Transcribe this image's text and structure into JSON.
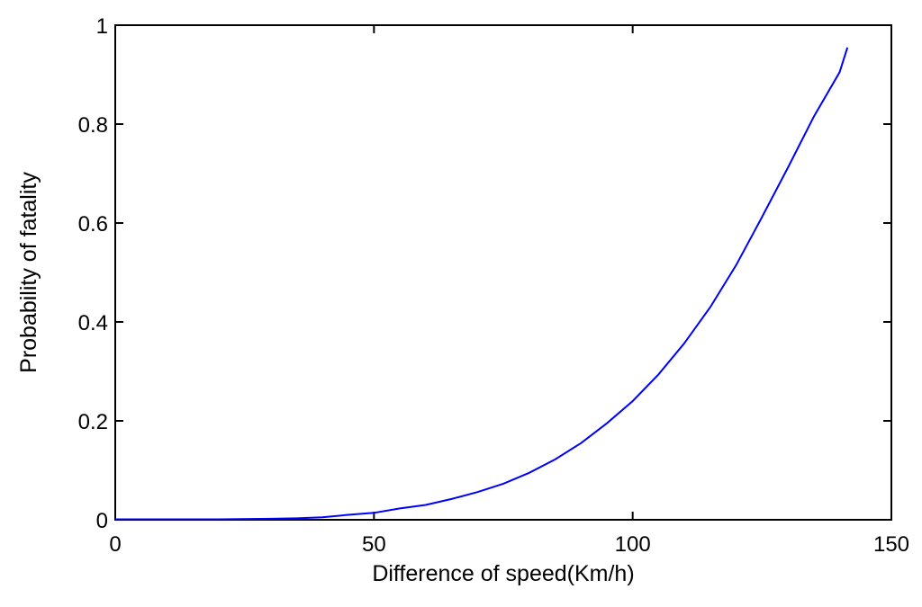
{
  "chart_data": {
    "type": "line",
    "title": "",
    "xlabel": "Difference of speed(Km/h)",
    "ylabel": "Probability of fatality",
    "xlim": [
      0,
      150
    ],
    "ylim": [
      0,
      1
    ],
    "xticks": [
      0,
      50,
      100,
      150
    ],
    "xtick_labels": [
      "0",
      "50",
      "100",
      "150"
    ],
    "yticks": [
      0,
      0.2,
      0.4,
      0.6,
      0.8,
      1
    ],
    "ytick_labels": [
      "0",
      "0.2",
      "0.4",
      "0.6",
      "0.8",
      "1"
    ],
    "grid": false,
    "legend": "none",
    "line_color": "#0000ff",
    "series": [
      {
        "x": [
          0,
          10,
          20,
          30,
          35,
          40,
          45,
          50,
          55,
          60,
          65,
          70,
          75,
          80,
          85,
          90,
          95,
          100,
          105,
          110,
          115,
          120,
          125,
          130,
          135,
          140,
          141.5
        ],
        "y": [
          0.001,
          0.001,
          0.001,
          0.002,
          0.003,
          0.005,
          0.01,
          0.014,
          0.023,
          0.03,
          0.042,
          0.056,
          0.073,
          0.095,
          0.122,
          0.155,
          0.195,
          0.24,
          0.294,
          0.357,
          0.43,
          0.515,
          0.612,
          0.712,
          0.815,
          0.905,
          0.955
        ]
      }
    ]
  }
}
